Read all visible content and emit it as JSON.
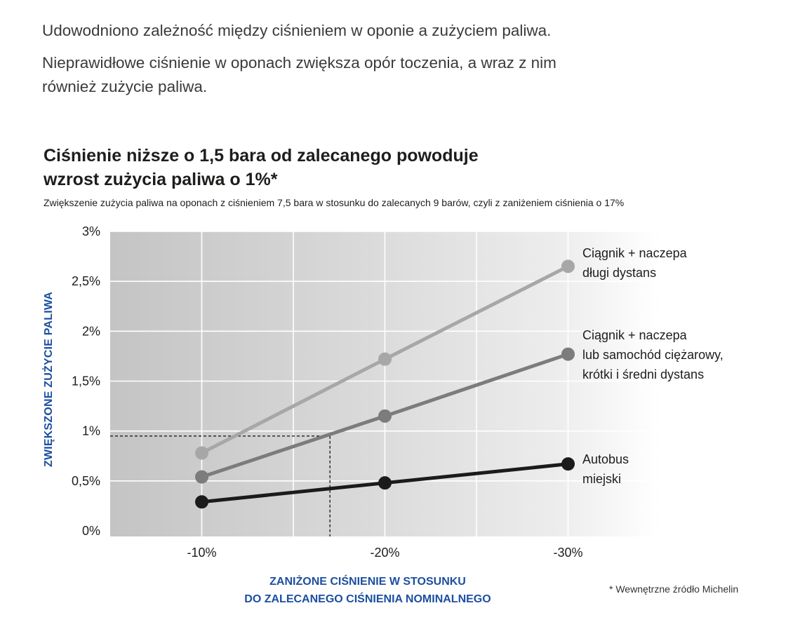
{
  "intro": {
    "line1": "Udowodniono zależność między ciśnieniem w oponie a zużyciem paliwa.",
    "line2": "Nieprawidłowe ciśnienie w oponach zwiększa opór toczenia, a wraz z nim",
    "line3": "również zużycie paliwa."
  },
  "footnote": "* Wewnętrzne źródło Michelin",
  "chart_data": {
    "type": "line",
    "title": "Ciśnienie niższe o 1,5 bara od zalecanego powoduje wzrost zużycia paliwa o 1%*",
    "title_lines": [
      "Ciśnienie niższe o 1,5 bara od zalecanego powoduje",
      "wzrost zużycia paliwa o 1%*"
    ],
    "subtitle": "Zwiększenie zużycia paliwa na oponach z ciśnieniem 7,5 bara w stosunku do zalecanych 9 barów, czyli z zaniżeniem ciśnienia o 17%",
    "xlabel": "ZANIŻONE CIŚNIENIE W STOSUNKU DO ZALECANEGO CIŚNIENIA NOMINALNEGO",
    "xlabel_lines": [
      "ZANIŻONE CIŚNIENIE W STOSUNKU",
      "DO ZALECANEGO CIŚNIENIA NOMINALNEGO"
    ],
    "ylabel": "ZWIĘKSZONE ZUŻYCIE PALIWA",
    "x": [
      -10,
      -20,
      -30
    ],
    "x_tick_labels": [
      "-10%",
      "-20%",
      "-30%"
    ],
    "xlim": [
      -5,
      -35
    ],
    "ylim": [
      0,
      3
    ],
    "y_ticks": [
      0,
      0.5,
      1,
      1.5,
      2,
      2.5,
      3
    ],
    "y_tick_labels": [
      "0%",
      "0,5%",
      "1%",
      "1,5%",
      "2%",
      "2,5%",
      "3%"
    ],
    "grid": true,
    "reference": {
      "x": -17,
      "y": 0.95
    },
    "series": [
      {
        "name": "Ciągnik + naczepa długi dystans",
        "label_lines": [
          "Ciągnik + naczepa",
          "długi dystans"
        ],
        "color": "#a7a7a7",
        "values": [
          0.78,
          1.72,
          2.65
        ]
      },
      {
        "name": "Ciągnik + naczepa lub samochód ciężarowy, krótki i średni dystans",
        "label_lines": [
          "Ciągnik + naczepa",
          "lub samochód ciężarowy,",
          "krótki i średni dystans"
        ],
        "color": "#7c7c7c",
        "values": [
          0.54,
          1.15,
          1.77
        ]
      },
      {
        "name": "Autobus miejski",
        "label_lines": [
          "Autobus",
          "miejski"
        ],
        "color": "#1b1b1b",
        "values": [
          0.29,
          0.48,
          0.67
        ]
      }
    ]
  }
}
